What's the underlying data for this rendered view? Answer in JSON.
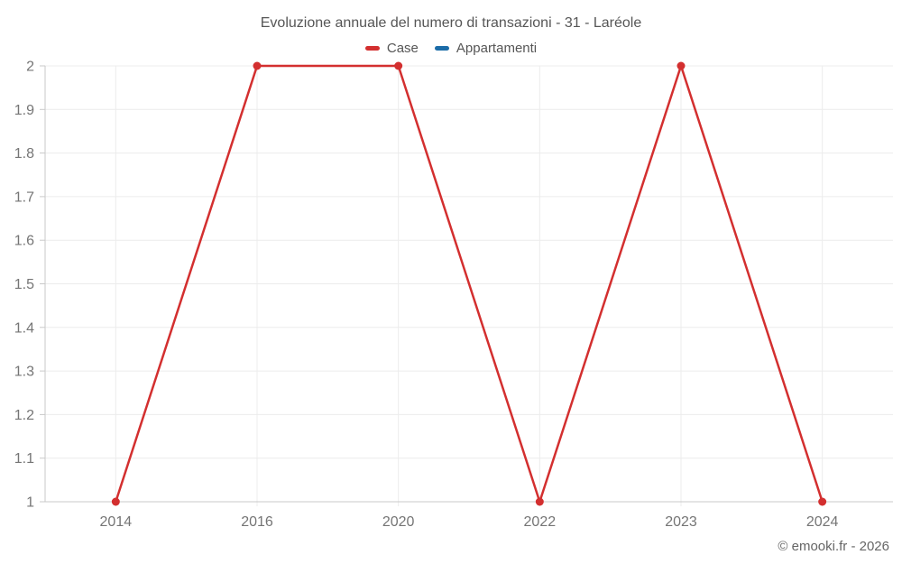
{
  "chart": {
    "title": "Evoluzione annuale del numero di transazioni - 31 - Laréole"
  },
  "legend": {
    "items": [
      {
        "label": "Case",
        "color": "#d32f2f"
      },
      {
        "label": "Appartamenti",
        "color": "#1b6ca8"
      }
    ]
  },
  "footer": {
    "copyright": "© emooki.fr - 2026"
  },
  "colors": {
    "series_case": "#d32f2f",
    "series_appartamenti": "#1b6ca8",
    "grid": "#ececec",
    "axis": "#c9c9c9",
    "tick_label": "#757575"
  },
  "chart_data": {
    "type": "line",
    "title": "Evoluzione annuale del numero di transazioni - 31 - Laréole",
    "categories": [
      "2014",
      "2016",
      "2020",
      "2022",
      "2023",
      "2024"
    ],
    "series": [
      {
        "name": "Case",
        "color": "#d32f2f",
        "values": [
          1,
          2,
          2,
          1,
          2,
          1
        ]
      },
      {
        "name": "Appartamenti",
        "color": "#1b6ca8",
        "values": []
      }
    ],
    "xlabel": "",
    "ylabel": "",
    "ylim": [
      1,
      2
    ],
    "ytick_step": 0.1,
    "ytick_labels": [
      "1",
      "1.1",
      "1.2",
      "1.3",
      "1.4",
      "1.5",
      "1.6",
      "1.7",
      "1.8",
      "1.9",
      "2"
    ],
    "grid": true,
    "legend_position": "top",
    "marker": "circle"
  }
}
